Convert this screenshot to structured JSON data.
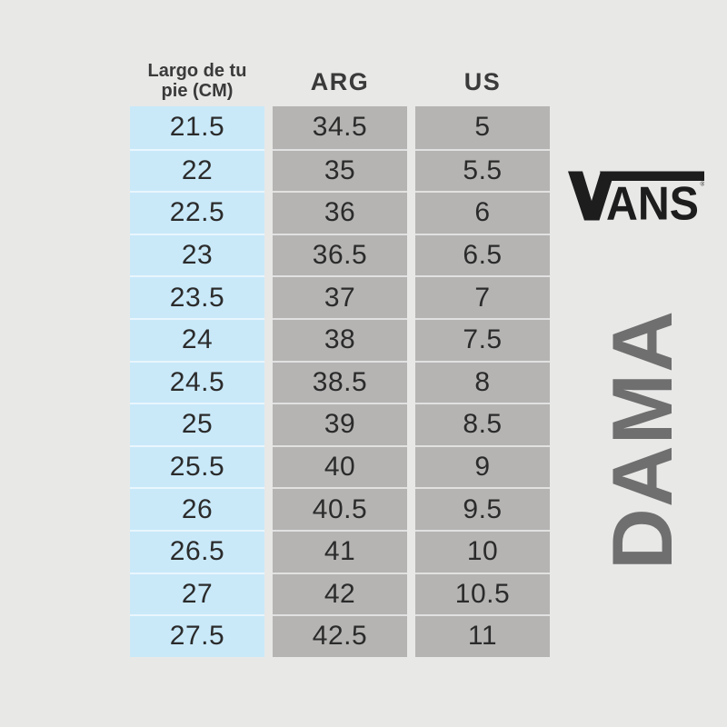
{
  "colors": {
    "background": "#e8e8e7",
    "cm_col": "#c9e9f9",
    "size_col": "#b5b4b3",
    "separator": "rgba(255,255,255,0.6)",
    "number_text": "#2b2b2b",
    "header_text": "#3a3a3a",
    "logo": "#1d1d1d",
    "dama": "#6f6f6f"
  },
  "table": {
    "headers": [
      "Largo de tu pie (CM)",
      "ARG",
      "US"
    ],
    "rows": [
      [
        "21.5",
        "34.5",
        "5"
      ],
      [
        "22",
        "35",
        "5.5"
      ],
      [
        "22.5",
        "36",
        "6"
      ],
      [
        "23",
        "36.5",
        "6.5"
      ],
      [
        "23.5",
        "37",
        "7"
      ],
      [
        "24",
        "38",
        "7.5"
      ],
      [
        "24.5",
        "38.5",
        "8"
      ],
      [
        "25",
        "39",
        "8.5"
      ],
      [
        "25.5",
        "40",
        "9"
      ],
      [
        "26",
        "40.5",
        "9.5"
      ],
      [
        "26.5",
        "41",
        "10"
      ],
      [
        "27",
        "42",
        "10.5"
      ],
      [
        "27.5",
        "42.5",
        "11"
      ]
    ]
  },
  "branding": {
    "logo_text": "VANS",
    "logo_ans": "ANS",
    "registered": "®",
    "category_label": "DAMA"
  },
  "chart_data": {
    "type": "table",
    "columns": [
      "Largo de tu pie (CM)",
      "ARG",
      "US"
    ],
    "rows": [
      [
        21.5,
        34.5,
        5
      ],
      [
        22,
        35,
        5.5
      ],
      [
        22.5,
        36,
        6
      ],
      [
        23,
        36.5,
        6.5
      ],
      [
        23.5,
        37,
        7
      ],
      [
        24,
        38,
        7.5
      ],
      [
        24.5,
        38.5,
        8
      ],
      [
        25,
        39,
        8.5
      ],
      [
        25.5,
        40,
        9
      ],
      [
        26,
        40.5,
        9.5
      ],
      [
        26.5,
        41,
        10
      ],
      [
        27,
        42,
        10.5
      ],
      [
        27.5,
        42.5,
        11
      ]
    ],
    "annotations": [
      "VANS",
      "DAMA"
    ],
    "layout": {
      "cm_column_color": "#c9e9f9",
      "size_column_color": "#b5b4b3"
    }
  }
}
